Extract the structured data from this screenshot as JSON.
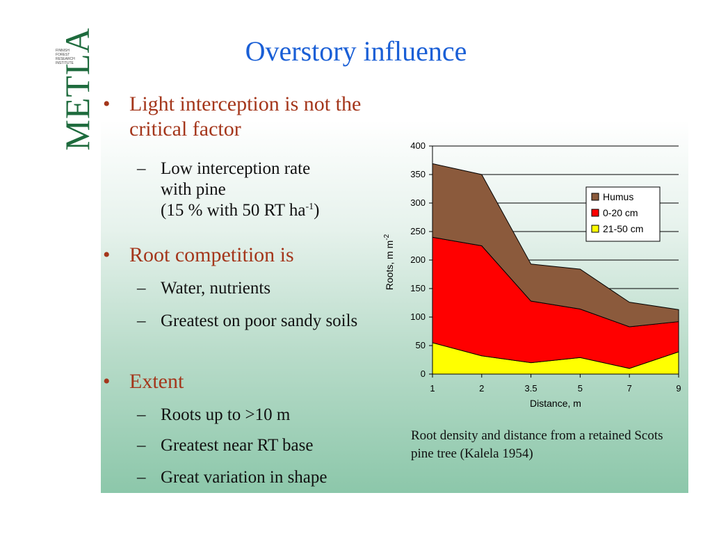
{
  "logo": {
    "word": "METLA",
    "subtitle_lines": [
      "FINNISH",
      "FOREST",
      "RESEARCH",
      "INSTITUTE"
    ],
    "color": "#1e6b3d"
  },
  "title": "Overstory influence",
  "colors": {
    "title": "#1a5fd6",
    "bullet": "#a4361b",
    "panel_bottom": "#8cc7aa"
  },
  "bullets": [
    {
      "text": "Light interception is not the critical factor",
      "sub": [
        {
          "line1": "Low interception rate",
          "line2": "with pine",
          "line3_pre": "(15 % with 50 RT ha",
          "line3_sup": "-1",
          "line3_post": ")"
        }
      ]
    },
    {
      "text": "Root competition is",
      "sub": [
        {
          "text": "Water, nutrients"
        },
        {
          "text": "Greatest on poor sandy soils"
        }
      ]
    },
    {
      "text": "Extent",
      "sub": [
        {
          "text": "Roots up to >10 m"
        },
        {
          "text": "Greatest near RT base"
        },
        {
          "text": "Great variation in shape"
        }
      ]
    }
  ],
  "caption": "Root density and distance from a retained Scots pine tree (Kalela 1954)",
  "chart_data": {
    "type": "area",
    "stacked": true,
    "categories": [
      "1",
      "2",
      "3.5",
      "5",
      "7",
      "9"
    ],
    "series": [
      {
        "name": "21-50 cm",
        "color": "#ffff00",
        "values": [
          55,
          32,
          20,
          29,
          10,
          39
        ]
      },
      {
        "name": "0-20 cm",
        "color": "#ff0000",
        "values": [
          185,
          193,
          108,
          85,
          73,
          53
        ]
      },
      {
        "name": "Humus",
        "color": "#8b5a3c",
        "values": [
          129,
          125,
          65,
          70,
          43,
          21
        ]
      }
    ],
    "legend_order": [
      "Humus",
      "0-20 cm",
      "21-50 cm"
    ],
    "xlabel": "Distance, m",
    "ylabel_pre": "Roots, m m",
    "ylabel_sup": "-2",
    "yticks": [
      "0",
      "50",
      "100",
      "150",
      "200",
      "250",
      "300",
      "350",
      "400"
    ],
    "ylim": [
      0,
      400
    ],
    "grid": true,
    "legend_position": "right"
  }
}
